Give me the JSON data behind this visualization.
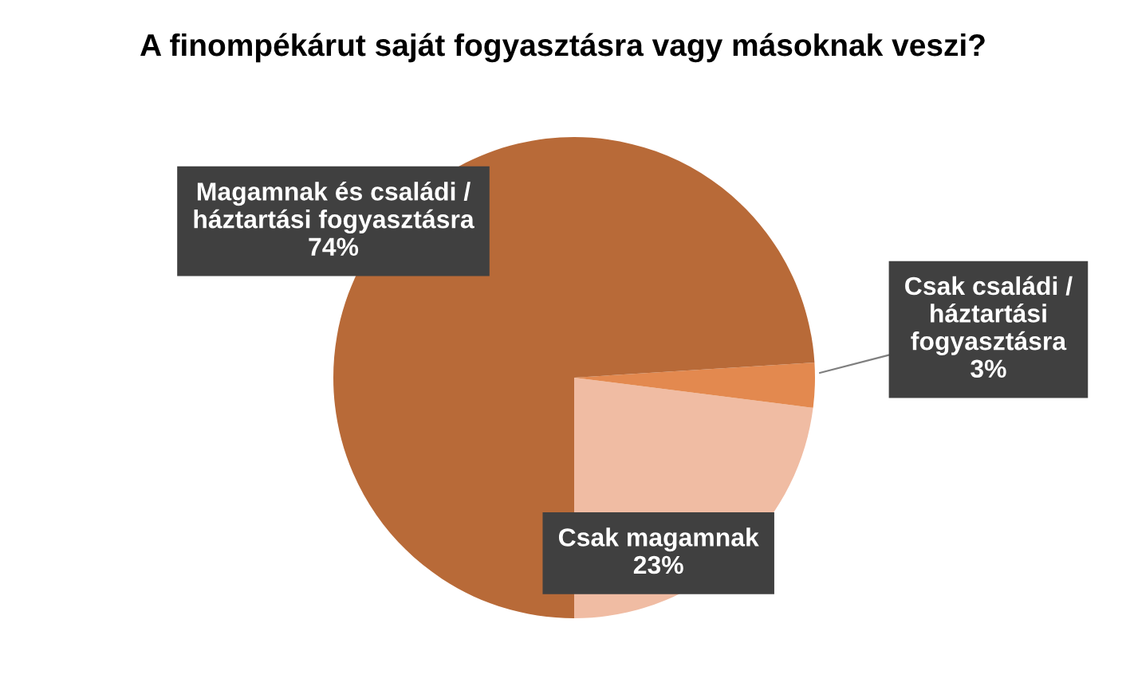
{
  "chart_data": {
    "type": "pie",
    "title": "A finompékárut saját fogyasztásra vagy másoknak veszi?",
    "categories": [
      "Csak magamnak",
      "Csak családi /\nháztartási\nfogyasztásra",
      "Magamnak és családi /\nháztartási fogyasztásra"
    ],
    "values": [
      23,
      3,
      74
    ],
    "colors": [
      "#f0bca3",
      "#e3894f",
      "#b86a38"
    ],
    "value_labels": [
      "23%",
      "3%",
      "74%"
    ],
    "legend": false
  }
}
